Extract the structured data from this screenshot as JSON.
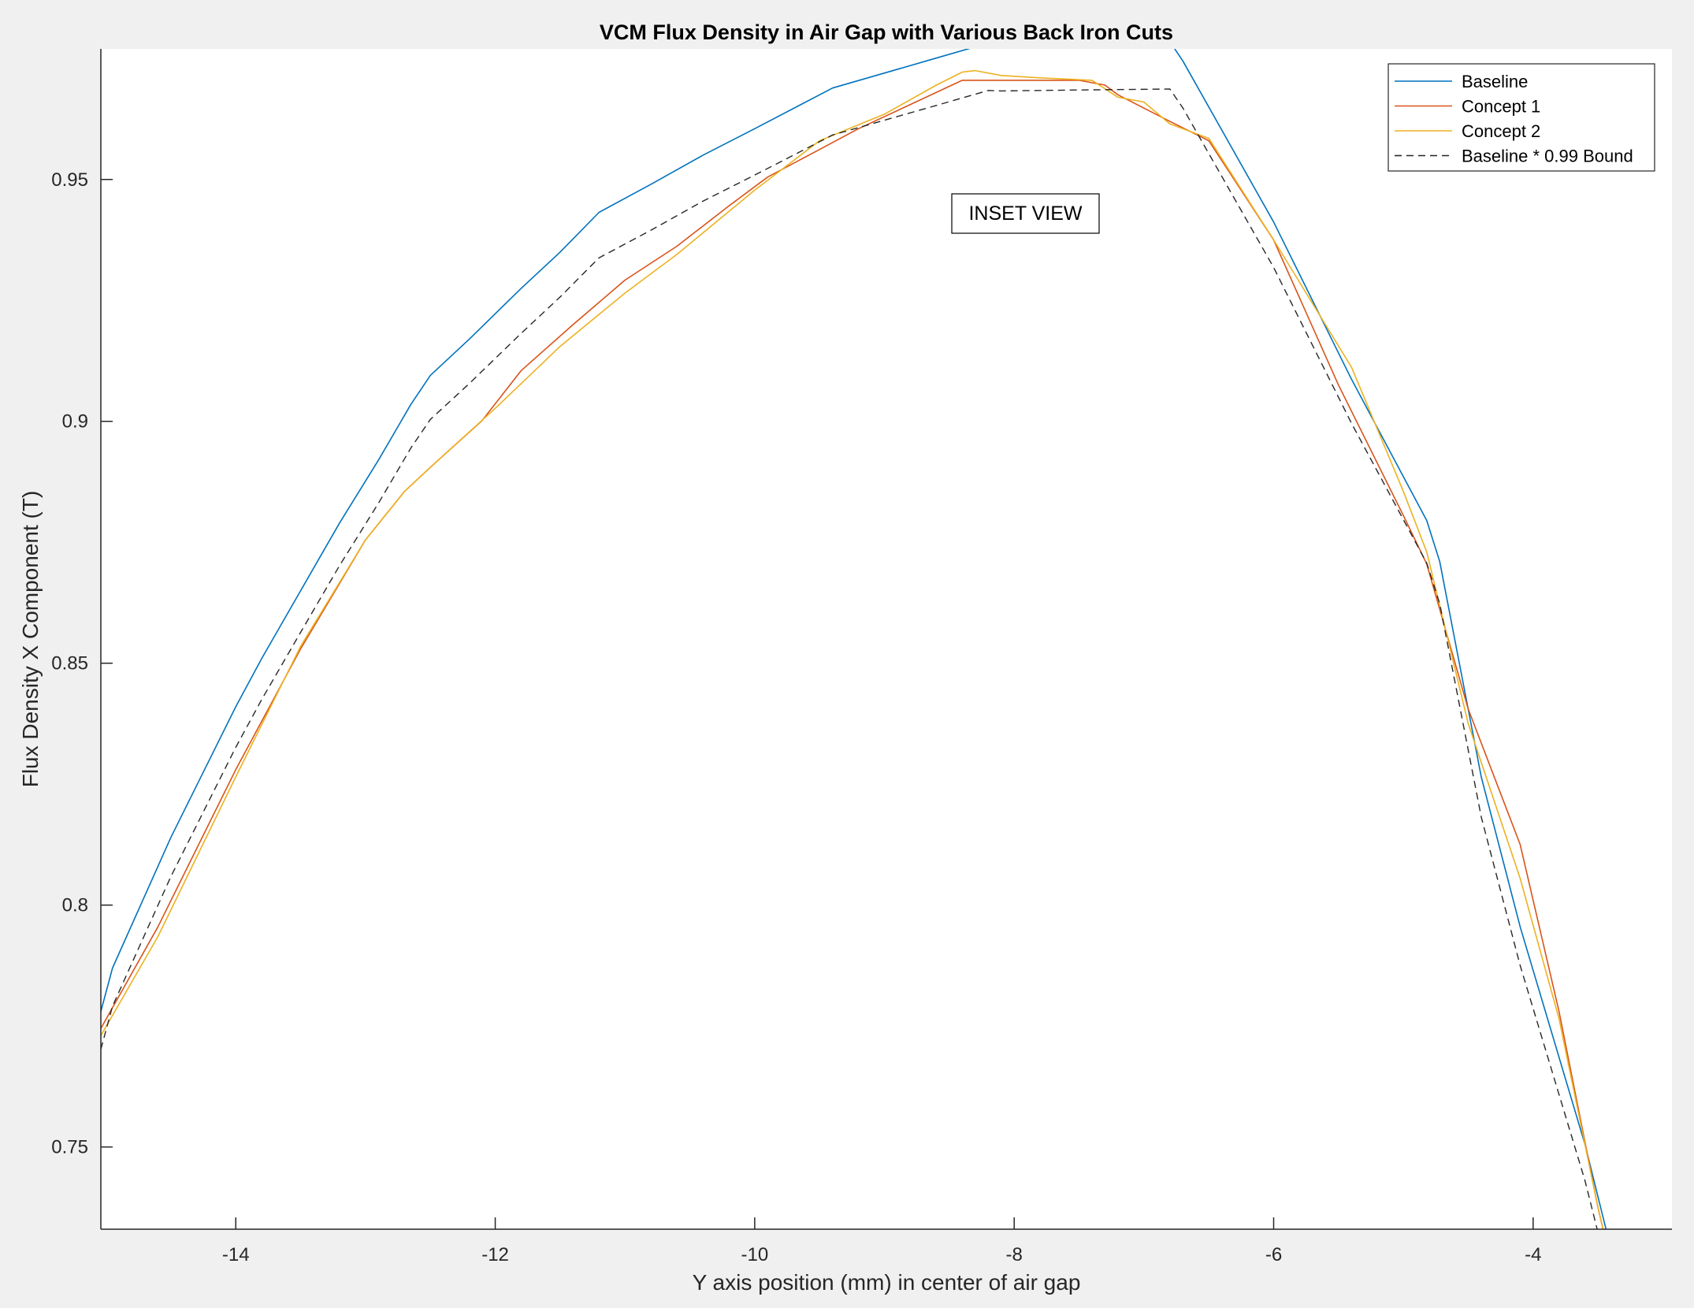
{
  "chart_data": {
    "type": "line",
    "title": "VCM Flux Density in Air Gap with Various Back Iron Cuts",
    "xlabel": "Y axis position (mm) in center of air gap",
    "ylabel": "Flux Density X Component (T)",
    "xlim": [
      -15.04,
      -2.93
    ],
    "ylim": [
      0.733,
      0.977
    ],
    "xticks": [
      -14,
      -12,
      -10,
      -8,
      -6,
      -4
    ],
    "yticks": [
      0.75,
      0.8,
      0.85,
      0.9,
      0.95
    ],
    "xtick_labels": [
      "-14",
      "-12",
      "-10",
      "-8",
      "-6",
      "-4"
    ],
    "ytick_labels": [
      "0.75",
      "0.8",
      "0.85",
      "0.9",
      "0.95"
    ],
    "grid": false,
    "legend_position": "top-right",
    "annotation": "INSET VIEW",
    "series": [
      {
        "name": "Baseline",
        "color": "#0072bd",
        "style": "solid",
        "x": [
          -15.04,
          -14.95,
          -14.5,
          -14.0,
          -13.8,
          -13.5,
          -13.2,
          -12.9,
          -12.65,
          -12.5,
          -12.2,
          -11.8,
          -11.5,
          -11.2,
          -10.8,
          -10.4,
          -10.0,
          -9.4,
          -8.6,
          -8.2,
          -8.1,
          -7.5,
          -6.8,
          -6.7,
          -6.0,
          -5.4,
          -4.82,
          -4.72,
          -4.4,
          -4.1,
          -3.6,
          -3.35
        ],
        "y": [
          0.778,
          0.787,
          0.814,
          0.841,
          0.851,
          0.865,
          0.879,
          0.892,
          0.9035,
          0.9095,
          0.917,
          0.9275,
          0.935,
          0.9432,
          0.949,
          0.955,
          0.9605,
          0.9689,
          0.9751,
          0.9782,
          0.9781,
          0.9783,
          0.9785,
          0.9745,
          0.9412,
          0.9087,
          0.8795,
          0.871,
          0.8265,
          0.7955,
          0.7505,
          0.7235
        ]
      },
      {
        "name": "Concept 1",
        "color": "#d95319",
        "style": "solid",
        "x": [
          -15.04,
          -14.6,
          -14.0,
          -13.5,
          -13.0,
          -12.7,
          -12.5,
          -12.1,
          -11.8,
          -11.4,
          -11.0,
          -10.6,
          -10.2,
          -9.9,
          -9.5,
          -9.2,
          -8.8,
          -8.4,
          -8.3,
          -8.0,
          -7.5,
          -7.3,
          -7.2,
          -6.8,
          -6.5,
          -6.0,
          -5.5,
          -5.0,
          -4.82,
          -4.5,
          -4.1,
          -3.8,
          -3.5,
          -3.3
        ],
        "y": [
          0.7745,
          0.7955,
          0.828,
          0.853,
          0.8755,
          0.8855,
          0.8905,
          0.9002,
          0.9105,
          0.92,
          0.9292,
          0.9362,
          0.9445,
          0.9505,
          0.9562,
          0.9605,
          0.9655,
          0.9705,
          0.9705,
          0.9705,
          0.9705,
          0.9695,
          0.9675,
          0.962,
          0.958,
          0.9375,
          0.9075,
          0.8805,
          0.8705,
          0.8405,
          0.8125,
          0.778,
          0.7375,
          0.7145
        ]
      },
      {
        "name": "Concept 2",
        "color": "#edb120",
        "style": "solid",
        "x": [
          -15.04,
          -14.6,
          -14.0,
          -13.5,
          -13.0,
          -12.7,
          -12.5,
          -12.0,
          -11.5,
          -11.0,
          -10.6,
          -10.0,
          -9.5,
          -9.0,
          -8.6,
          -8.4,
          -8.3,
          -8.1,
          -7.8,
          -7.4,
          -7.2,
          -7.0,
          -6.8,
          -6.5,
          -6.0,
          -5.4,
          -5.0,
          -4.82,
          -4.5,
          -4.1,
          -3.8,
          -3.5,
          -3.3
        ],
        "y": [
          0.773,
          0.7935,
          0.8265,
          0.8535,
          0.8755,
          0.8855,
          0.8905,
          0.9027,
          0.9155,
          0.9265,
          0.9345,
          0.9478,
          0.958,
          0.9635,
          0.9695,
          0.9722,
          0.9725,
          0.9715,
          0.971,
          0.9705,
          0.967,
          0.966,
          0.9615,
          0.9585,
          0.9375,
          0.9112,
          0.8855,
          0.873,
          0.8375,
          0.8055,
          0.7765,
          0.7375,
          0.7145
        ]
      },
      {
        "name": "Baseline * 0.99 Bound",
        "color": "#262626",
        "style": "dashed",
        "x": [
          -15.04,
          -14.95,
          -14.5,
          -14.0,
          -13.8,
          -13.5,
          -13.2,
          -12.9,
          -12.65,
          -12.5,
          -12.2,
          -11.8,
          -11.5,
          -11.2,
          -10.8,
          -10.4,
          -10.0,
          -9.4,
          -8.6,
          -8.2,
          -8.1,
          -7.5,
          -6.8,
          -6.7,
          -6.0,
          -5.4,
          -4.82,
          -4.72,
          -4.4,
          -4.1,
          -3.6,
          -3.35
        ],
        "y": [
          0.7702,
          0.7791,
          0.8059,
          0.8326,
          0.8425,
          0.8564,
          0.8702,
          0.8831,
          0.8945,
          0.9004,
          0.9078,
          0.9182,
          0.9257,
          0.9338,
          0.9395,
          0.9455,
          0.9509,
          0.9592,
          0.9653,
          0.9684,
          0.9683,
          0.9685,
          0.9687,
          0.9648,
          0.9318,
          0.8996,
          0.8707,
          0.8623,
          0.8182,
          0.7875,
          0.743,
          0.7163
        ]
      }
    ]
  }
}
